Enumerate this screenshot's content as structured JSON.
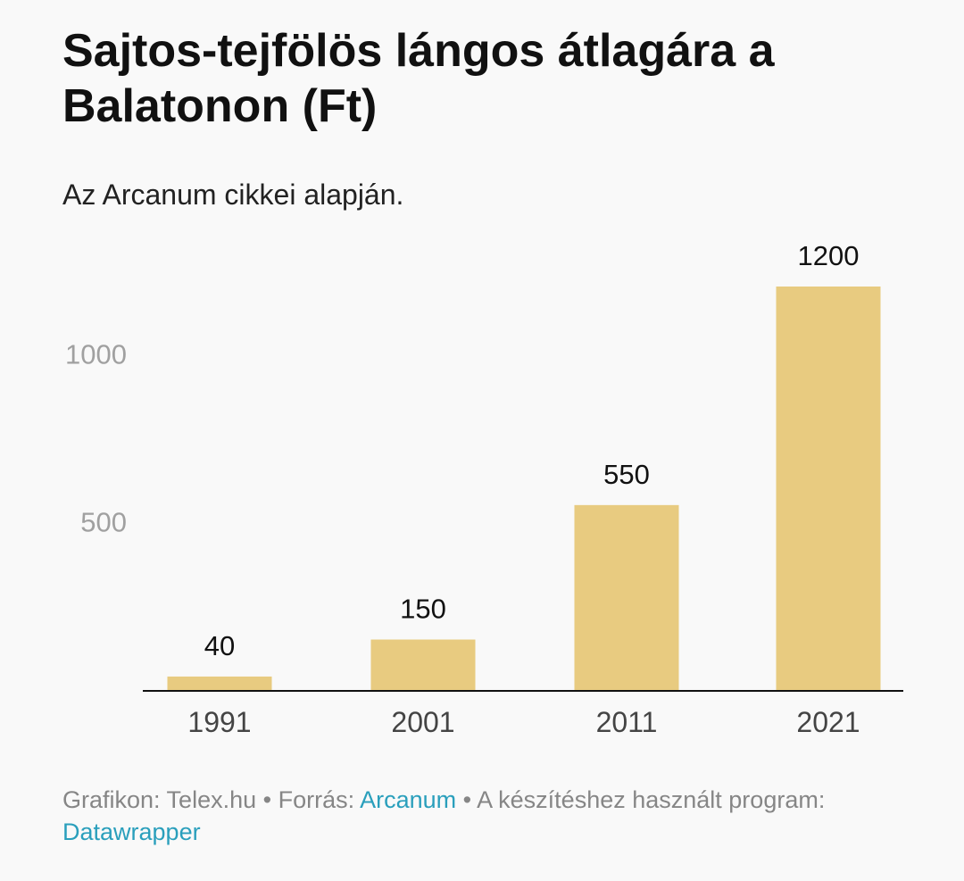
{
  "header": {
    "title": "Sajtos-tejfölös lángos átlagára a Balatonon (Ft)",
    "subtitle": "Az Arcanum cikkei alapján."
  },
  "chart_data": {
    "type": "bar",
    "categories": [
      "1991",
      "2001",
      "2011",
      "2021"
    ],
    "values": [
      40,
      150,
      550,
      1200
    ],
    "data_labels": [
      "40",
      "150",
      "550",
      "1200"
    ],
    "title": "Sajtos-tejfölös lángos átlagára a Balatonon (Ft)",
    "subtitle": "Az Arcanum cikkei alapján.",
    "xlabel": "",
    "ylabel": "",
    "yticks": [
      500,
      1000
    ],
    "ytick_labels": [
      "500",
      "1000"
    ],
    "ylim": [
      0,
      1200
    ],
    "grid": false,
    "legend": "none",
    "colors": {
      "bar": "#e8cb80",
      "axis": "#111111",
      "tick_label": "#a0a0a0",
      "category_label": "#444444",
      "data_label": "#111111"
    }
  },
  "footer": {
    "graphic_prefix": "Grafikon: Telex.hu",
    "separator1": " • ",
    "source_prefix": "Forrás: ",
    "source_link": "Arcanum",
    "separator2": " • ",
    "program_prefix": "A készítéshez használt program: ",
    "program_link": "Datawrapper",
    "link_color": "#2a9fbc"
  }
}
